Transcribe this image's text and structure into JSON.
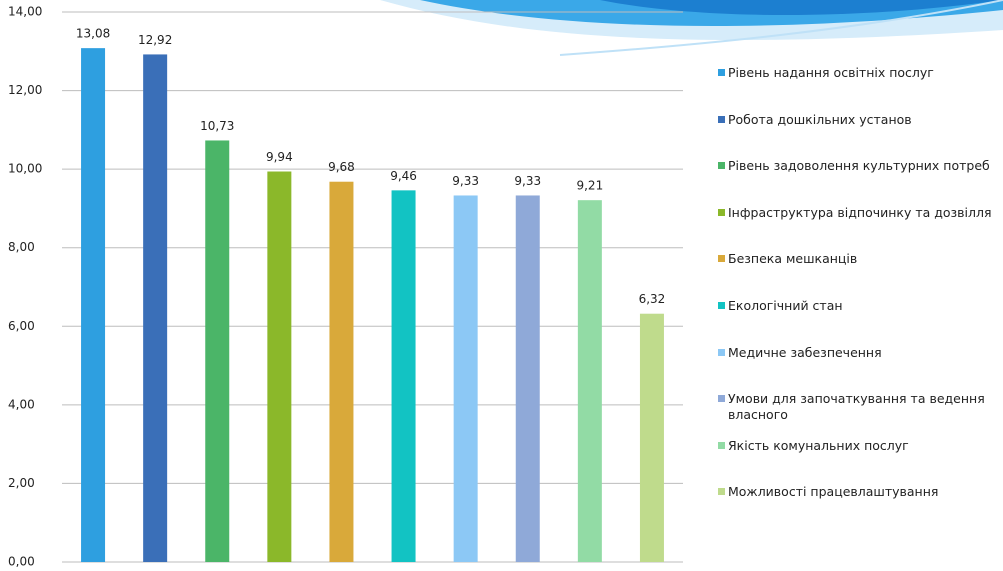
{
  "chart_data": {
    "type": "bar",
    "ylim": [
      0,
      14
    ],
    "yticks": [
      {
        "value": 0,
        "label": "0,00"
      },
      {
        "value": 2,
        "label": "2,00"
      },
      {
        "value": 4,
        "label": "4,00"
      },
      {
        "value": 6,
        "label": "6,00"
      },
      {
        "value": 8,
        "label": "8,00"
      },
      {
        "value": 10,
        "label": "10,00"
      },
      {
        "value": 12,
        "label": "12,00"
      },
      {
        "value": 14,
        "label": "14,00"
      }
    ],
    "grid": true,
    "legend": "right",
    "series": [
      {
        "name": "Рівень надання освітніх послуг",
        "color": "#2e9fe0",
        "values": [
          13.08
        ],
        "value_labels": [
          "13,08"
        ]
      },
      {
        "name": "Робота дошкільних установ",
        "color": "#3a6fb8",
        "values": [
          12.92
        ],
        "value_labels": [
          "12,92"
        ]
      },
      {
        "name": "Рівень задоволення культурних потреб",
        "color": "#4bb568",
        "values": [
          10.73
        ],
        "value_labels": [
          "10,73"
        ]
      },
      {
        "name": "Інфраструктура відпочинку та дозвілля",
        "color": "#8bb82a",
        "values": [
          9.94
        ],
        "value_labels": [
          "9,94"
        ]
      },
      {
        "name": "Безпека мешканців",
        "color": "#d9a93a",
        "values": [
          9.68
        ],
        "value_labels": [
          "9,68"
        ]
      },
      {
        "name": "Екологічний стан",
        "color": "#12c3c3",
        "values": [
          9.46
        ],
        "value_labels": [
          "9,46"
        ]
      },
      {
        "name": "Медичне забезпечення",
        "color": "#8cc8f5",
        "values": [
          9.33
        ],
        "value_labels": [
          "9,33"
        ]
      },
      {
        "name": "Умови для започаткування та ведення власного",
        "color": "#8fa9d8",
        "values": [
          9.33
        ],
        "value_labels": [
          "9,33"
        ]
      },
      {
        "name": "Якість комунальних послуг",
        "color": "#92dba5",
        "values": [
          9.21
        ],
        "value_labels": [
          "9,21"
        ]
      },
      {
        "name": "Можливості працевлаштування",
        "color": "#bfdb8c",
        "values": [
          6.32
        ],
        "value_labels": [
          "6,32"
        ]
      }
    ]
  }
}
